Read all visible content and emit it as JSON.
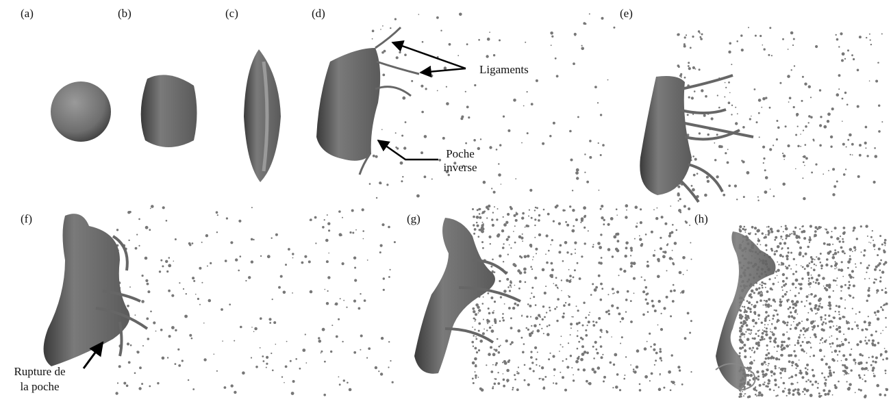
{
  "panels": [
    {
      "label": "(a)"
    },
    {
      "label": "(b)"
    },
    {
      "label": "(c)"
    },
    {
      "label": "(d)"
    },
    {
      "label": "(e)"
    },
    {
      "label": "(f)"
    },
    {
      "label": "(g)"
    },
    {
      "label": "(h)"
    }
  ],
  "annotations": [
    {
      "lines": [
        "Ligaments"
      ]
    },
    {
      "lines": [
        "Poche",
        "inverse"
      ]
    },
    {
      "lines": [
        "Rupture de",
        "la poche"
      ]
    }
  ]
}
